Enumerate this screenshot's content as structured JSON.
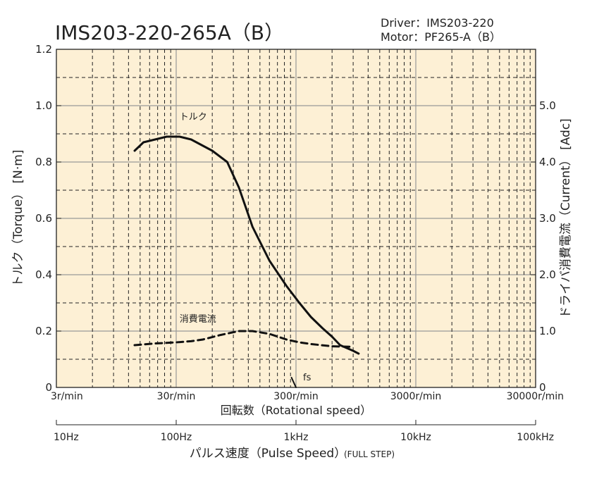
{
  "header": {
    "title": "IMS203-220-265A（B）",
    "driver_line": "Driver：IMS203-220",
    "motor_line": "Motor：PF265-A（B）"
  },
  "colors": {
    "plot_background": "#fdf0d5",
    "grid_major": "#999999",
    "grid_minor": "#222222",
    "curve": "#111111"
  },
  "chart_data": {
    "type": "line",
    "grid": true,
    "y_axis": {
      "label": "トルク（Torque） [N·m]",
      "range": [
        0,
        1.2
      ],
      "ticks": [
        "0",
        "0.2",
        "0.4",
        "0.6",
        "0.8",
        "1.0",
        "1.2"
      ],
      "tick_values": [
        0,
        0.2,
        0.4,
        0.6,
        0.8,
        1.0,
        1.2
      ]
    },
    "y2_axis": {
      "label": "ドライバ消費電流（Current） [Adc]",
      "range": [
        0,
        6.0
      ],
      "ticks": [
        "0",
        "1.0",
        "2.0",
        "3.0",
        "4.0",
        "5.0"
      ],
      "tick_values": [
        0,
        1.0,
        2.0,
        3.0,
        4.0,
        5.0
      ]
    },
    "x_axis": {
      "label": "回転数（Rotational speed）",
      "scale": "log",
      "unit": "r/min",
      "range": [
        3,
        30000
      ],
      "ticks": [
        "3r/min",
        "30r/min",
        "300r/min",
        "3000r/min",
        "30000r/min"
      ],
      "tick_values": [
        3,
        30,
        300,
        3000,
        30000
      ]
    },
    "x2_axis": {
      "label": "パルス速度（Pulse Speed）",
      "label_suffix": "(FULL STEP)",
      "scale": "log",
      "unit": "Hz",
      "range": [
        10,
        100000
      ],
      "ticks": [
        "10Hz",
        "100Hz",
        "1kHz",
        "10kHz",
        "100kHz"
      ],
      "tick_values": [
        10,
        100,
        1000,
        10000,
        100000
      ]
    },
    "series": [
      {
        "name": "トルク",
        "axis": "left",
        "style": "solid",
        "x_rpm": [
          13.5,
          16,
          20,
          25,
          32,
          40,
          60,
          80,
          100,
          130,
          180,
          250,
          320,
          400,
          500,
          600,
          700,
          900,
          1000
        ],
        "y": [
          0.84,
          0.87,
          0.88,
          0.89,
          0.89,
          0.88,
          0.84,
          0.8,
          0.71,
          0.57,
          0.45,
          0.36,
          0.3,
          0.25,
          0.21,
          0.18,
          0.15,
          0.13,
          0.12
        ]
      },
      {
        "name": "消費電流",
        "axis": "right",
        "style": "dashed",
        "x_rpm": [
          13.5,
          20,
          30,
          40,
          50,
          70,
          100,
          130,
          180,
          250,
          320,
          400,
          600,
          900
        ],
        "y": [
          0.75,
          0.78,
          0.8,
          0.82,
          0.85,
          0.93,
          1.0,
          1.0,
          0.95,
          0.85,
          0.8,
          0.77,
          0.73,
          0.72
        ]
      },
      {
        "name": "fs",
        "axis": "left",
        "style": "solid",
        "x_rpm": [
          275,
          300
        ],
        "y": [
          0.035,
          0.0
        ]
      }
    ]
  }
}
